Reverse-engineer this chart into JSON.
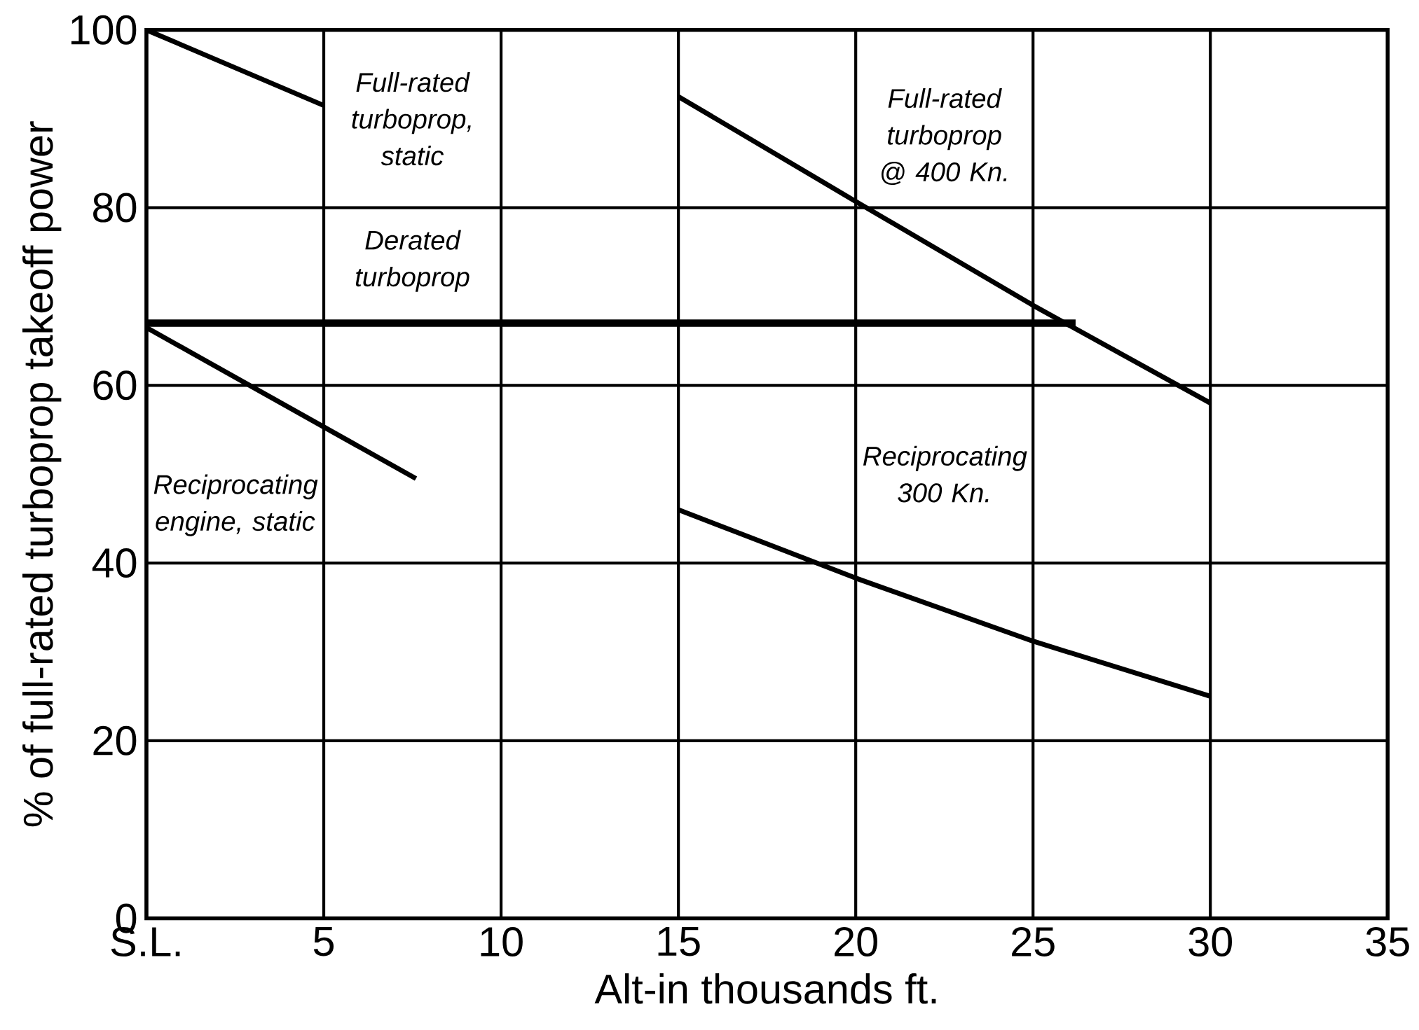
{
  "chart_data": {
    "type": "line",
    "xlabel": "Alt-in thousands ft.",
    "ylabel": "% of full-rated turboprop takeoff power",
    "xlim": [
      0,
      35
    ],
    "ylim": [
      0,
      100
    ],
    "xticks": [
      {
        "value": 0,
        "label": "S.L."
      },
      5,
      10,
      15,
      20,
      25,
      30,
      35
    ],
    "yticks": [
      0,
      20,
      40,
      60,
      80,
      100
    ],
    "grid": true,
    "legend": false,
    "marker": "none",
    "line_style": "solid",
    "series": [
      {
        "name": "Full-rated turboprop, static",
        "color": "#000000",
        "x": [
          0,
          5
        ],
        "values": [
          100,
          91.5
        ]
      },
      {
        "name": "Full-rated turboprop @ 400 Kn.",
        "color": "#000000",
        "x": [
          15,
          20,
          25,
          30
        ],
        "values": [
          92.5,
          80.7,
          69,
          58
        ]
      },
      {
        "name": "Derated turboprop",
        "color": "#000000",
        "x": [
          0,
          26.2
        ],
        "values": [
          67,
          67
        ]
      },
      {
        "name": "Reciprocating engine, static",
        "color": "#000000",
        "x": [
          0,
          7.6
        ],
        "values": [
          66.5,
          49.5
        ]
      },
      {
        "name": "Reciprocating 300 Kn.",
        "color": "#000000",
        "x": [
          15,
          20,
          25,
          30
        ],
        "values": [
          46,
          38.3,
          31.2,
          25
        ]
      }
    ]
  }
}
